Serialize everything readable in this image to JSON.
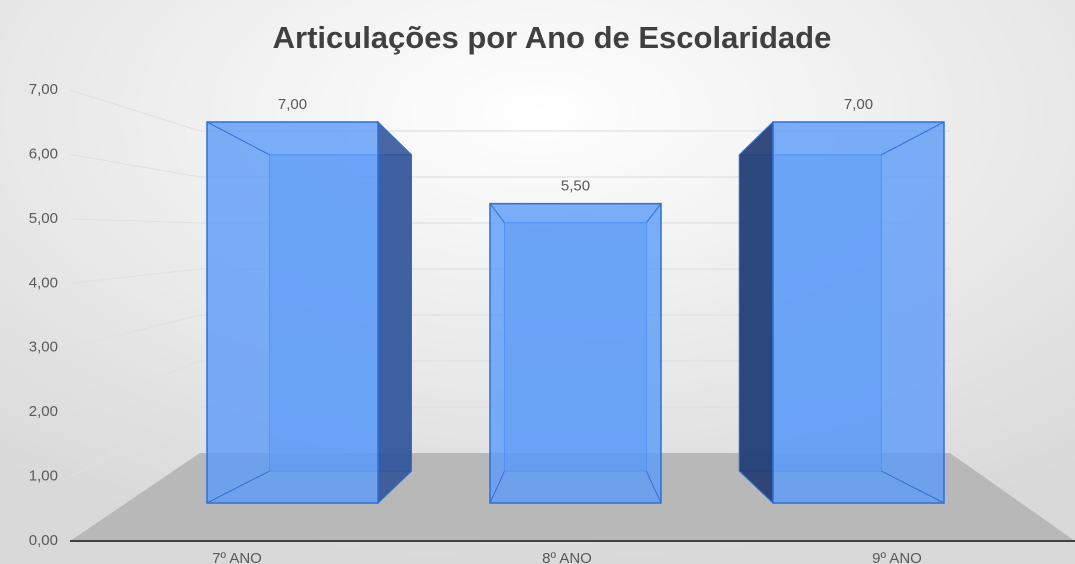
{
  "chart_data": {
    "type": "bar3d",
    "title": "Articulações por Ano de Escolaridade",
    "categories": [
      "7º ANO",
      "8º ANO",
      "9º ANO"
    ],
    "values": [
      7,
      5.5,
      7
    ],
    "value_labels": [
      "7,00",
      "5,50",
      "7,00"
    ],
    "color": "#5b9bf8",
    "ylim": [
      0,
      7
    ],
    "yticks": [
      {
        "value": 0,
        "label": "0,00"
      },
      {
        "value": 1,
        "label": "1,00"
      },
      {
        "value": 2,
        "label": "2,00"
      },
      {
        "value": 3,
        "label": "3,00"
      },
      {
        "value": 4,
        "label": "4,00"
      },
      {
        "value": 5,
        "label": "5,00"
      },
      {
        "value": 6,
        "label": "6,00"
      },
      {
        "value": 7,
        "label": "7,00"
      }
    ],
    "grid": true
  }
}
